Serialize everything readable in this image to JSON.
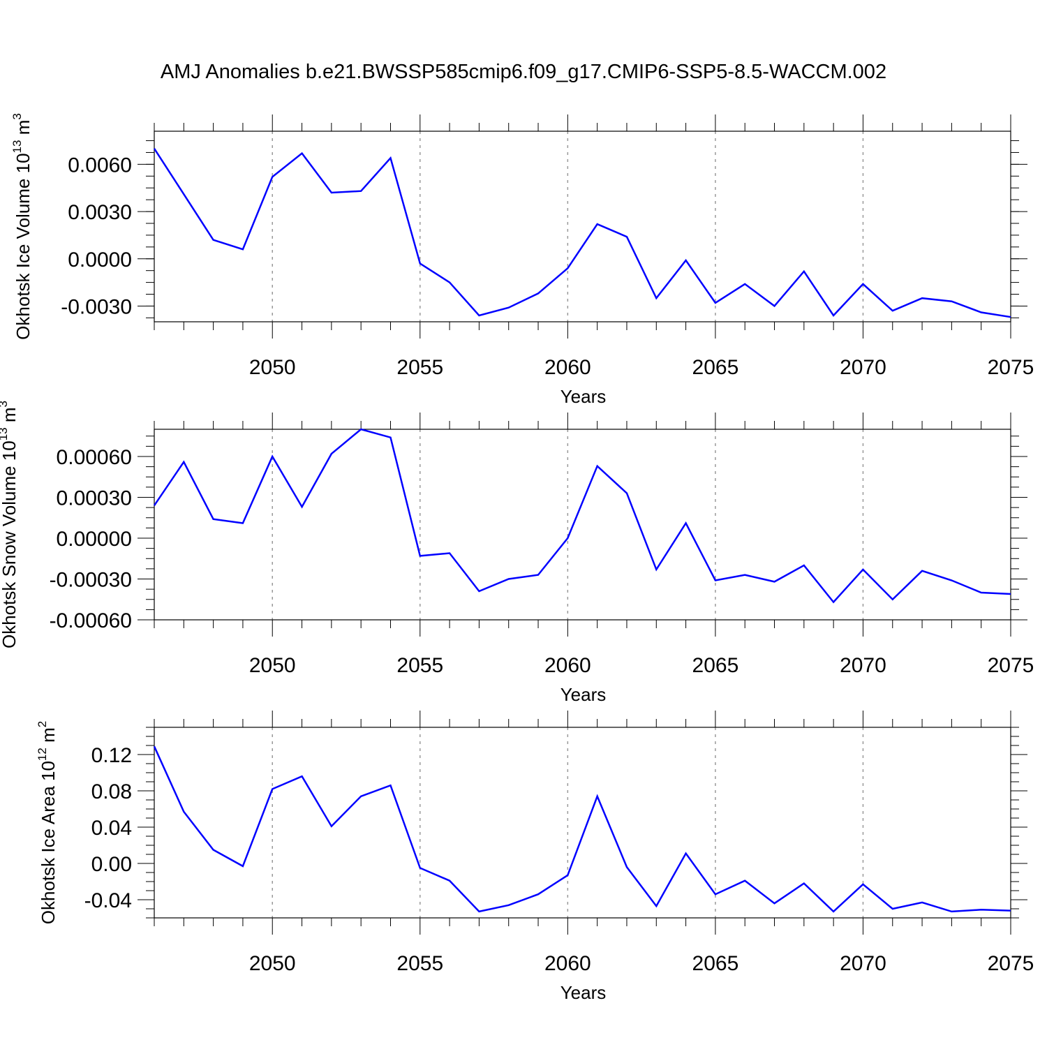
{
  "title": "AMJ Anomalies b.e21.BWSSP585cmip6.f09_g17.CMIP6-SSP5-8.5-WACCM.002",
  "colors": {
    "line": "#0000ff",
    "axes": "#000000",
    "grid": "#999999"
  },
  "chart_data": [
    {
      "type": "line",
      "ylabel": {
        "main": "Okhotsk Ice Volume 10",
        "exp": "13",
        "unit": " m",
        "unit_exp": "3"
      },
      "xlabel": "Years",
      "xlim": [
        2046,
        2075
      ],
      "ylim": [
        -0.004,
        0.0081
      ],
      "xticks": [
        "2050",
        "2055",
        "2060",
        "2065",
        "2070",
        "2075"
      ],
      "yticks": [
        "-0.0030",
        "0.0000",
        "0.0030",
        "0.0060"
      ],
      "ytick_values": [
        -0.003,
        0.0,
        0.003,
        0.006
      ],
      "grid": "vertical dashed at labeled years",
      "x": [
        2046,
        2047,
        2048,
        2049,
        2050,
        2051,
        2052,
        2053,
        2054,
        2055,
        2056,
        2057,
        2058,
        2059,
        2060,
        2061,
        2062,
        2063,
        2064,
        2065,
        2066,
        2067,
        2068,
        2069,
        2070,
        2071,
        2072,
        2073,
        2074,
        2075
      ],
      "values": [
        0.007,
        0.0041,
        0.0012,
        0.0006,
        0.0052,
        0.0067,
        0.0042,
        0.0043,
        0.0064,
        -0.0003,
        -0.0015,
        -0.0036,
        -0.0031,
        -0.0022,
        -0.0006,
        0.0022,
        0.0014,
        -0.0025,
        -0.0001,
        -0.0028,
        -0.0016,
        -0.003,
        -0.0008,
        -0.0036,
        -0.0016,
        -0.0033,
        -0.0025,
        -0.0027,
        -0.0034,
        -0.0037
      ]
    },
    {
      "type": "line",
      "ylabel": {
        "main": "Okhotsk Snow Volume 10",
        "exp": "13",
        "unit": " m",
        "unit_exp": "3"
      },
      "xlabel": "Years",
      "xlim": [
        2046,
        2075
      ],
      "ylim": [
        -0.0006,
        0.0008
      ],
      "xticks": [
        "2050",
        "2055",
        "2060",
        "2065",
        "2070",
        "2075"
      ],
      "yticks": [
        "-0.00060",
        "-0.00030",
        "0.00000",
        "0.00030",
        "0.00060"
      ],
      "ytick_values": [
        -0.0006,
        -0.0003,
        0.0,
        0.0003,
        0.0006
      ],
      "grid": "vertical dashed at labeled years",
      "x": [
        2046,
        2047,
        2048,
        2049,
        2050,
        2051,
        2052,
        2053,
        2054,
        2055,
        2056,
        2057,
        2058,
        2059,
        2060,
        2061,
        2062,
        2063,
        2064,
        2065,
        2066,
        2067,
        2068,
        2069,
        2070,
        2071,
        2072,
        2073,
        2074,
        2075
      ],
      "values": [
        0.00024,
        0.00056,
        0.00014,
        0.00011,
        0.0006,
        0.00023,
        0.00062,
        0.0008,
        0.00074,
        -0.00013,
        -0.00011,
        -0.00039,
        -0.0003,
        -0.00027,
        0.0,
        0.00053,
        0.00033,
        -0.00023,
        0.00011,
        -0.00031,
        -0.00027,
        -0.00032,
        -0.0002,
        -0.00047,
        -0.00023,
        -0.00045,
        -0.00024,
        -0.00031,
        -0.0004,
        -0.00041
      ]
    },
    {
      "type": "line",
      "ylabel": {
        "main": "Okhotsk Ice Area 10",
        "exp": "12",
        "unit": " m",
        "unit_exp": "2"
      },
      "xlabel": "Years",
      "xlim": [
        2046,
        2075
      ],
      "ylim": [
        -0.06,
        0.15
      ],
      "xticks": [
        "2050",
        "2055",
        "2060",
        "2065",
        "2070",
        "2075"
      ],
      "yticks": [
        "-0.04",
        "0.00",
        "0.04",
        "0.08",
        "0.12"
      ],
      "ytick_values": [
        -0.04,
        0.0,
        0.04,
        0.08,
        0.12
      ],
      "grid": "vertical dashed at labeled years",
      "x": [
        2046,
        2047,
        2048,
        2049,
        2050,
        2051,
        2052,
        2053,
        2054,
        2055,
        2056,
        2057,
        2058,
        2059,
        2060,
        2061,
        2062,
        2063,
        2064,
        2065,
        2066,
        2067,
        2068,
        2069,
        2070,
        2071,
        2072,
        2073,
        2074,
        2075
      ],
      "values": [
        0.129,
        0.057,
        0.015,
        -0.003,
        0.082,
        0.096,
        0.041,
        0.074,
        0.086,
        -0.005,
        -0.019,
        -0.053,
        -0.046,
        -0.034,
        -0.013,
        0.074,
        -0.004,
        -0.047,
        0.011,
        -0.034,
        -0.019,
        -0.044,
        -0.022,
        -0.053,
        -0.023,
        -0.05,
        -0.043,
        -0.053,
        -0.051,
        -0.052
      ]
    }
  ]
}
